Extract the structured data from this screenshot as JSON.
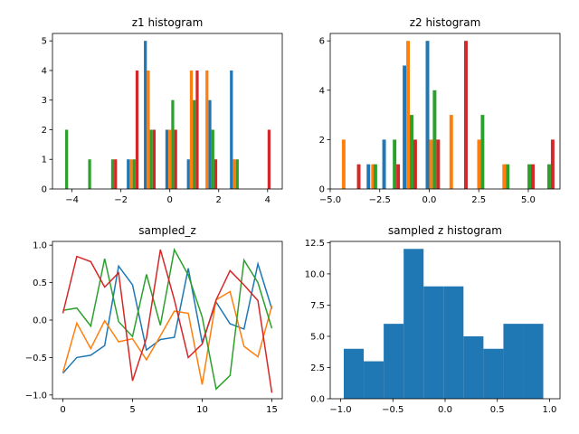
{
  "colors": [
    "#1f77b4",
    "#ff7f0e",
    "#2ca02c",
    "#d62728"
  ],
  "chart_data": [
    {
      "type": "bar",
      "title": "z1 histogram",
      "xlim": [
        -4.8,
        4.6
      ],
      "ylim": [
        0,
        5.25
      ],
      "xticks": [
        -4,
        -2,
        0,
        2,
        4
      ],
      "yticks": [
        0,
        1,
        2,
        3,
        4,
        5
      ],
      "grouped_bars": [
        {
          "series": 2,
          "x": -4.22,
          "value": 2
        },
        {
          "series": 2,
          "x": -3.28,
          "value": 1
        },
        {
          "series": 2,
          "x": -2.34,
          "value": 1
        },
        {
          "series": 3,
          "x": -2.22,
          "value": 1
        },
        {
          "series": 0,
          "x": -1.7,
          "value": 1
        },
        {
          "series": 1,
          "x": -1.58,
          "value": 1
        },
        {
          "series": 2,
          "x": -1.46,
          "value": 1
        },
        {
          "series": 3,
          "x": -1.34,
          "value": 4
        },
        {
          "series": 0,
          "x": -1.0,
          "value": 5
        },
        {
          "series": 1,
          "x": -0.88,
          "value": 4
        },
        {
          "series": 2,
          "x": -0.76,
          "value": 2
        },
        {
          "series": 3,
          "x": -0.64,
          "value": 2
        },
        {
          "series": 0,
          "x": -0.12,
          "value": 2
        },
        {
          "series": 1,
          "x": 0.0,
          "value": 2
        },
        {
          "series": 2,
          "x": 0.12,
          "value": 3
        },
        {
          "series": 3,
          "x": 0.24,
          "value": 2
        },
        {
          "series": 0,
          "x": 0.76,
          "value": 1
        },
        {
          "series": 1,
          "x": 0.88,
          "value": 4
        },
        {
          "series": 2,
          "x": 1.0,
          "value": 3
        },
        {
          "series": 3,
          "x": 1.12,
          "value": 4
        },
        {
          "series": 1,
          "x": 1.52,
          "value": 4
        },
        {
          "series": 0,
          "x": 1.64,
          "value": 3
        },
        {
          "series": 2,
          "x": 1.76,
          "value": 2
        },
        {
          "series": 3,
          "x": 1.88,
          "value": 1
        },
        {
          "series": 0,
          "x": 2.52,
          "value": 4
        },
        {
          "series": 1,
          "x": 2.64,
          "value": 1
        },
        {
          "series": 2,
          "x": 2.76,
          "value": 1
        },
        {
          "series": 3,
          "x": 4.06,
          "value": 2
        }
      ]
    },
    {
      "type": "bar",
      "title": "z2 histogram",
      "xlim": [
        -5.0,
        6.6
      ],
      "ylim": [
        0,
        6.3
      ],
      "xticks": [
        -5.0,
        -2.5,
        0.0,
        2.5,
        5.0
      ],
      "xtick_labels": [
        "−5.0",
        "−2.5",
        "0.0",
        "2.5",
        "5.0"
      ],
      "yticks": [
        0,
        2,
        4,
        6
      ],
      "grouped_bars": [
        {
          "series": 1,
          "x": -4.32,
          "value": 2
        },
        {
          "series": 3,
          "x": -3.56,
          "value": 1
        },
        {
          "series": 0,
          "x": -3.07,
          "value": 1
        },
        {
          "series": 1,
          "x": -2.84,
          "value": 1
        },
        {
          "series": 2,
          "x": -2.72,
          "value": 1
        },
        {
          "series": 0,
          "x": -2.28,
          "value": 2
        },
        {
          "series": 2,
          "x": -1.75,
          "value": 2
        },
        {
          "series": 3,
          "x": -1.57,
          "value": 1
        },
        {
          "series": 0,
          "x": -1.25,
          "value": 5
        },
        {
          "series": 1,
          "x": -1.07,
          "value": 6
        },
        {
          "series": 2,
          "x": -0.89,
          "value": 3
        },
        {
          "series": 3,
          "x": -0.71,
          "value": 2
        },
        {
          "series": 0,
          "x": -0.09,
          "value": 6
        },
        {
          "series": 1,
          "x": 0.09,
          "value": 2
        },
        {
          "series": 2,
          "x": 0.27,
          "value": 4
        },
        {
          "series": 3,
          "x": 0.45,
          "value": 2
        },
        {
          "series": 1,
          "x": 1.11,
          "value": 3
        },
        {
          "series": 3,
          "x": 1.85,
          "value": 6
        },
        {
          "series": 1,
          "x": 2.51,
          "value": 2
        },
        {
          "series": 2,
          "x": 2.69,
          "value": 3
        },
        {
          "series": 1,
          "x": 3.78,
          "value": 1
        },
        {
          "series": 2,
          "x": 3.96,
          "value": 1
        },
        {
          "series": 2,
          "x": 5.05,
          "value": 1
        },
        {
          "series": 3,
          "x": 5.23,
          "value": 1
        },
        {
          "series": 2,
          "x": 6.05,
          "value": 1
        },
        {
          "series": 3,
          "x": 6.23,
          "value": 2
        }
      ]
    },
    {
      "type": "line",
      "title": "sampled_z",
      "xlim": [
        -0.75,
        15.75
      ],
      "ylim": [
        -1.05,
        1.05
      ],
      "xticks": [
        0,
        5,
        10,
        15
      ],
      "yticks": [
        -1.0,
        -0.5,
        0.0,
        0.5,
        1.0
      ],
      "ytick_labels": [
        "−1.0",
        "−0.5",
        "0.0",
        "0.5",
        "1.0"
      ],
      "x": [
        0,
        1,
        2,
        3,
        4,
        5,
        6,
        7,
        8,
        9,
        10,
        11,
        12,
        13,
        14,
        15
      ],
      "series": [
        {
          "values": [
            -0.71,
            -0.5,
            -0.47,
            -0.34,
            0.72,
            0.47,
            -0.4,
            -0.26,
            -0.23,
            0.69,
            -0.3,
            0.24,
            -0.05,
            -0.12,
            0.75,
            0.15
          ]
        },
        {
          "values": [
            -0.7,
            -0.04,
            -0.38,
            -0.01,
            -0.29,
            -0.25,
            -0.53,
            -0.21,
            0.12,
            0.09,
            -0.86,
            0.27,
            0.38,
            -0.35,
            -0.49,
            0.19
          ]
        },
        {
          "values": [
            0.13,
            0.16,
            -0.08,
            0.82,
            -0.02,
            -0.22,
            0.61,
            -0.07,
            0.94,
            0.6,
            0.04,
            -0.92,
            -0.74,
            0.8,
            0.5,
            -0.11
          ]
        },
        {
          "values": [
            0.09,
            0.85,
            0.78,
            0.44,
            0.63,
            -0.81,
            -0.24,
            0.94,
            0.27,
            -0.5,
            -0.32,
            0.27,
            0.66,
            0.47,
            0.26,
            -0.97
          ]
        }
      ]
    },
    {
      "type": "bar",
      "title": "sampled z histogram",
      "xlim": [
        -1.1,
        1.1
      ],
      "ylim": [
        0,
        12.6
      ],
      "xticks": [
        -1.0,
        -0.5,
        0.0,
        0.5,
        1.0
      ],
      "xtick_labels": [
        "−1.0",
        "−0.5",
        "0.0",
        "0.5",
        "1.0"
      ],
      "yticks": [
        0.0,
        2.5,
        5.0,
        7.5,
        10.0,
        12.5
      ],
      "ytick_labels": [
        "0.0",
        "2.5",
        "5.0",
        "7.5",
        "10.0",
        "12.5"
      ],
      "bin_edges": [
        -0.97,
        -0.779,
        -0.588,
        -0.397,
        -0.206,
        -0.015,
        0.176,
        0.367,
        0.558,
        0.749,
        0.94
      ],
      "values": [
        4,
        3,
        6,
        12,
        9,
        9,
        5,
        4,
        6,
        6
      ]
    }
  ]
}
